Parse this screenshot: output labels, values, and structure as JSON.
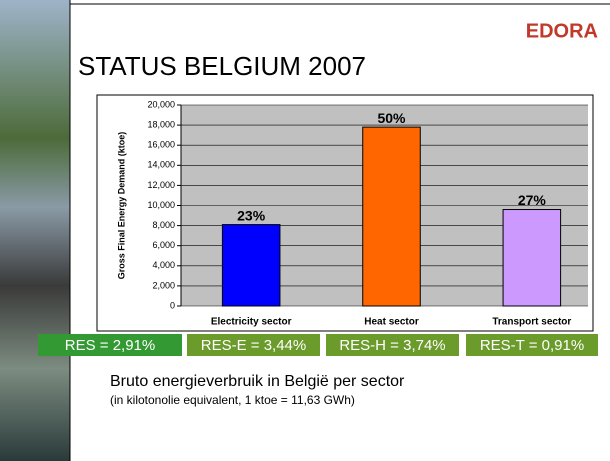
{
  "logo": "EDORA",
  "title": "STATUS BELGIUM 2007",
  "chart_data": {
    "type": "bar",
    "ylabel": "Gross Final Energy Demand (ktoe)",
    "categories": [
      "Electricity sector",
      "Heat sector",
      "Transport sector"
    ],
    "values": [
      8100,
      17800,
      9600
    ],
    "colors": [
      "#0000ff",
      "#ff6600",
      "#cc99ff"
    ],
    "share_labels": [
      "23%",
      "50%",
      "27%"
    ],
    "ylim": [
      0,
      20000
    ],
    "yticks": [
      0,
      {
        "value": 2000,
        "label": "2,000"
      },
      {
        "value": 4000,
        "label": "4,000"
      },
      {
        "value": 6000,
        "label": "6,000"
      },
      {
        "value": 8000,
        "label": "8,000"
      },
      {
        "value": 10000,
        "label": "10,000"
      },
      {
        "value": 12000,
        "label": "12,000"
      },
      {
        "value": 14000,
        "label": "14,000"
      },
      {
        "value": 16000,
        "label": "16,000"
      },
      {
        "value": 18000,
        "label": "18,000"
      },
      {
        "value": 20000,
        "label": "20,000"
      }
    ],
    "grid": true
  },
  "res_boxes": [
    "RES = 2,91%",
    "RES-E = 3,44%",
    "RES-H = 3,74%",
    "RES-T = 0,91%"
  ],
  "caption": "Bruto energieverbruik in België per sector",
  "note": "(in kilotonolie equivalent, 1 ktoe = 11,63 GWh)"
}
